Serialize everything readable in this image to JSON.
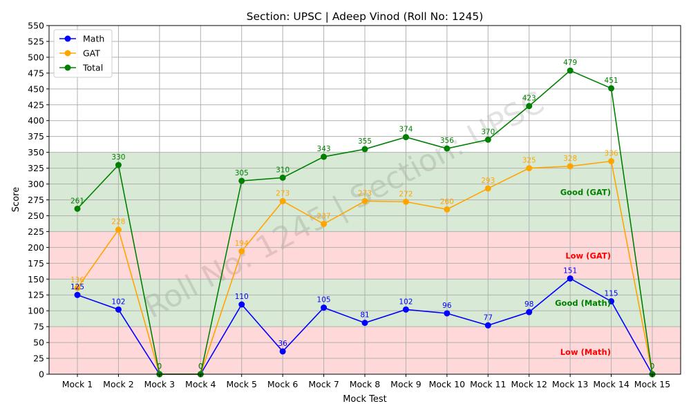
{
  "chart_data": {
    "type": "line",
    "title": "Section: UPSC | Adeep Vinod (Roll No: 1245)",
    "xlabel": "Mock Test",
    "ylabel": "Score",
    "watermark": "Roll No: 1245 | Section: UPSC",
    "categories": [
      "Mock 1",
      "Mock 2",
      "Mock 3",
      "Mock 4",
      "Mock 5",
      "Mock 6",
      "Mock 7",
      "Mock 8",
      "Mock 9",
      "Mock 10",
      "Mock 11",
      "Mock 12",
      "Mock 13",
      "Mock 14",
      "Mock 15"
    ],
    "ylim": [
      0,
      550
    ],
    "yticks": [
      0,
      25,
      50,
      75,
      100,
      125,
      150,
      175,
      200,
      225,
      250,
      275,
      300,
      325,
      350,
      375,
      400,
      425,
      450,
      475,
      500,
      525,
      550
    ],
    "grid": true,
    "legend_position": "top-left",
    "bands": [
      {
        "label": "Low (Math)",
        "from": 0,
        "to": 75,
        "fill": "#ffd9d9",
        "text_color": "#ff0000",
        "label_at": 35
      },
      {
        "label": "Good (Math)",
        "from": 75,
        "to": 150,
        "fill": "#d8ead5",
        "text_color": "#008000",
        "label_at": 112
      },
      {
        "label": "Low (GAT)",
        "from": 150,
        "to": 225,
        "fill": "#ffd9d9",
        "text_color": "#ff0000",
        "label_at": 187
      },
      {
        "label": "Good (GAT)",
        "from": 225,
        "to": 350,
        "fill": "#d8ead5",
        "text_color": "#008000",
        "label_at": 287
      }
    ],
    "series": [
      {
        "name": "Math",
        "color": "#0000ff",
        "values": [
          125,
          102,
          0,
          0,
          110,
          36,
          105,
          81,
          102,
          96,
          77,
          98,
          151,
          115,
          0
        ]
      },
      {
        "name": "GAT",
        "color": "#ffa500",
        "values": [
          136,
          228,
          0,
          0,
          194,
          273,
          237,
          273,
          272,
          260,
          293,
          325,
          328,
          336,
          0
        ]
      },
      {
        "name": "Total",
        "color": "#008000",
        "values": [
          261,
          330,
          0,
          0,
          305,
          310,
          343,
          355,
          374,
          356,
          370,
          423,
          479,
          451,
          0
        ]
      }
    ]
  }
}
